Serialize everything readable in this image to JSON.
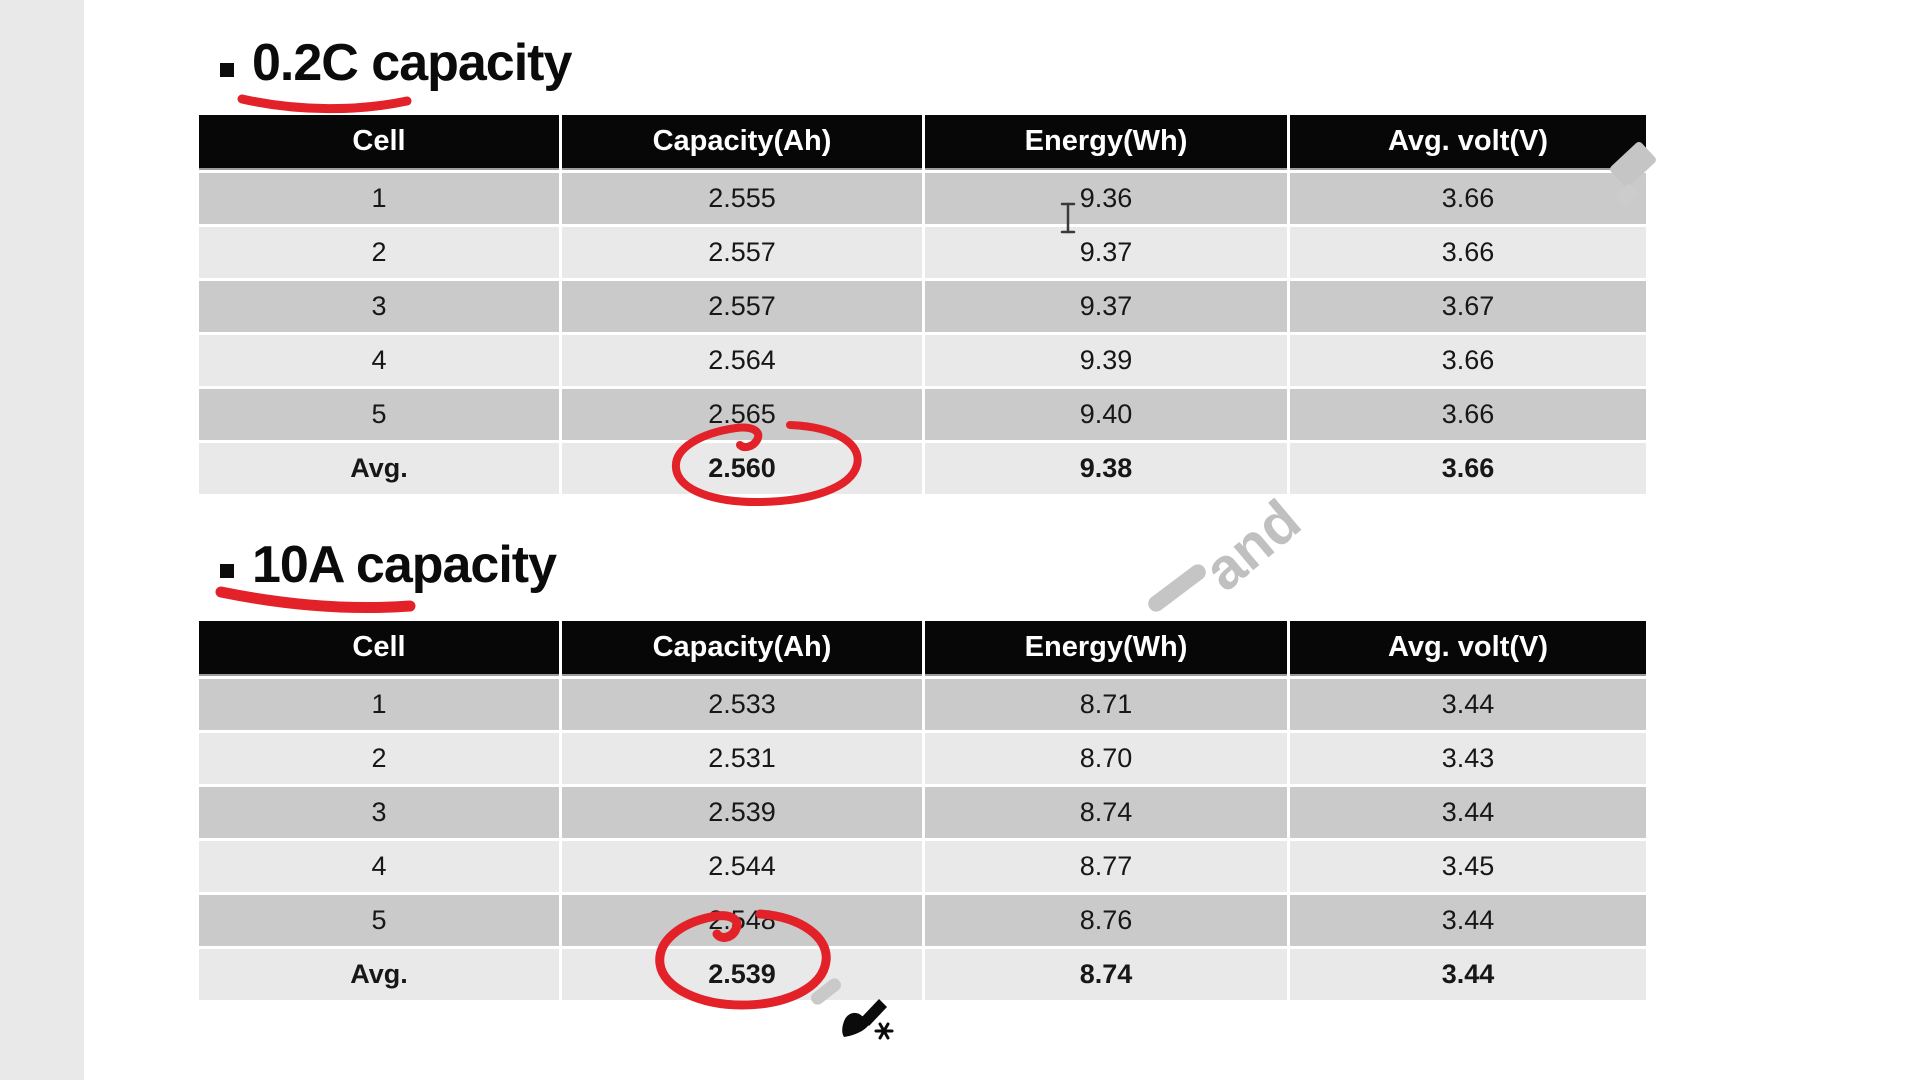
{
  "slide": {
    "background_color": "#ffffff",
    "left_gutter_color": "#e9e9e9",
    "annotation_red": "#e32128",
    "watermark": {
      "visible_text": "and",
      "color": "#c0c0c0"
    },
    "bullet_glyph": "▪",
    "sections": [
      {
        "title": "0.2C capacity",
        "table": {
          "headers": [
            "Cell",
            "Capacity(Ah)",
            "Energy(Wh)",
            "Avg. volt(V)"
          ],
          "rows": [
            [
              "1",
              "2.555",
              "9.36",
              "3.66"
            ],
            [
              "2",
              "2.557",
              "9.37",
              "3.66"
            ],
            [
              "3",
              "2.557",
              "9.37",
              "3.67"
            ],
            [
              "4",
              "2.564",
              "9.39",
              "3.66"
            ],
            [
              "5",
              "2.565",
              "9.40",
              "3.66"
            ]
          ],
          "avg_row": [
            "Avg.",
            "2.560",
            "9.38",
            "3.66"
          ],
          "annotation": "hand-drawn red circle around average capacity 2.560"
        }
      },
      {
        "title": "10A capacity",
        "table": {
          "headers": [
            "Cell",
            "Capacity(Ah)",
            "Energy(Wh)",
            "Avg. volt(V)"
          ],
          "rows": [
            [
              "1",
              "2.533",
              "8.71",
              "3.44"
            ],
            [
              "2",
              "2.531",
              "8.70",
              "3.43"
            ],
            [
              "3",
              "2.539",
              "8.74",
              "3.44"
            ],
            [
              "4",
              "2.544",
              "8.77",
              "3.45"
            ],
            [
              "5",
              "2.548",
              "8.76",
              "3.44"
            ]
          ],
          "avg_row": [
            "Avg.",
            "2.539",
            "8.74",
            "3.44"
          ],
          "annotation": "hand-drawn red circle around average capacity 2.539"
        }
      }
    ],
    "cursors_and_icons": [
      {
        "name": "text-ibeam-cursor",
        "glyph": "I"
      },
      {
        "name": "paintbrush-cursor",
        "glyph": "brush"
      },
      {
        "name": "sparkle-asterisk-icon",
        "glyph": "✳"
      }
    ],
    "table_colors": {
      "header_bg": "#070707",
      "header_text": "#ffffff",
      "row_dark": "#cacaca",
      "row_light": "#e9e9e9"
    }
  }
}
